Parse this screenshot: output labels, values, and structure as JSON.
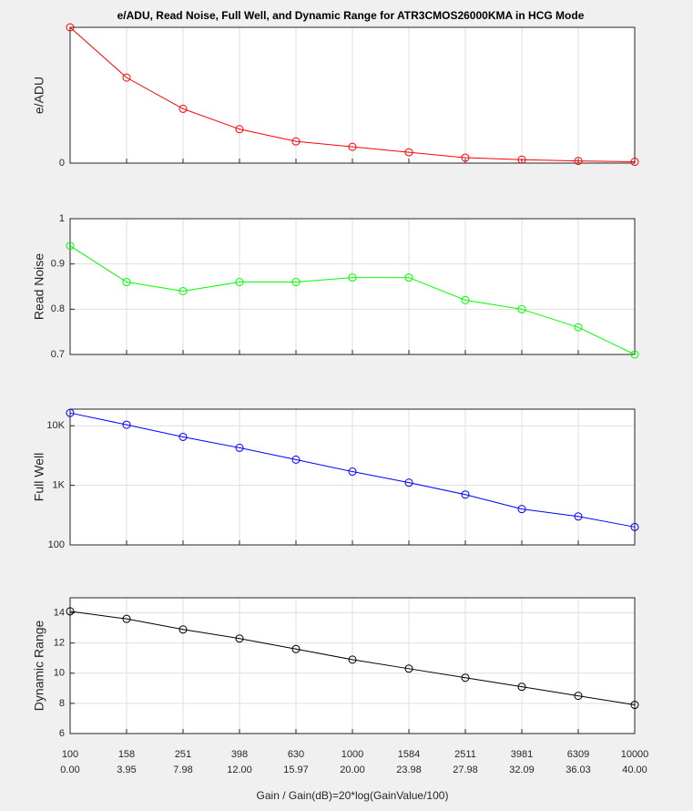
{
  "chart_data": [
    {
      "type": "line",
      "title": "e/ADU, Read Noise, Full Well, and Dynamic Range for ATR3CMOS26000KMA in HCG Mode",
      "ylabel": "e/ADU",
      "ylim": [
        0,
        1
      ],
      "yticks": [
        0
      ],
      "grid": true,
      "series": [
        {
          "color": "#ff0000",
          "values": [
            1,
            0.63,
            0.4,
            0.25,
            0.16,
            0.12,
            0.08,
            0.04,
            0.025,
            0.016,
            0.01
          ]
        }
      ]
    },
    {
      "type": "line",
      "ylabel": "Read Noise",
      "ylim": [
        0.7,
        1
      ],
      "yticks": [
        0.7,
        0.8,
        0.9,
        1
      ],
      "grid": true,
      "series": [
        {
          "color": "#00ff00",
          "values": [
            0.94,
            0.86,
            0.84,
            0.86,
            0.86,
            0.87,
            0.87,
            0.82,
            0.8,
            0.76,
            0.7
          ]
        }
      ]
    },
    {
      "type": "line",
      "ylabel": "Full Well",
      "log_y": true,
      "ylim": [
        100,
        19000
      ],
      "yticks": [
        100,
        {
          "value": 1000,
          "label": "1K"
        },
        {
          "value": 10000,
          "label": "10K"
        }
      ],
      "grid": true,
      "series": [
        {
          "color": "#0000ff",
          "values": [
            16400,
            10400,
            6500,
            4270,
            2700,
            1700,
            1110,
            700,
            400,
            300,
            200
          ]
        }
      ]
    },
    {
      "type": "line",
      "ylabel": "Dynamic Range",
      "ylim": [
        6,
        15
      ],
      "yticks": [
        6,
        8,
        10,
        12,
        14
      ],
      "grid": true,
      "xlabel": "Gain / Gain(dB)=20*log(GainValue/100)",
      "categories": [
        "100",
        "158",
        "251",
        "398",
        "630",
        "1000",
        "1584",
        "2511",
        "3981",
        "6309",
        "10000"
      ],
      "categories_db": [
        "0.00",
        "3.95",
        "7.98",
        "12.00",
        "15.97",
        "20.00",
        "23.98",
        "27.98",
        "32.09",
        "36.03",
        "40.00"
      ],
      "series": [
        {
          "color": "#000000",
          "values": [
            14.1,
            13.6,
            12.9,
            12.3,
            11.6,
            10.9,
            10.3,
            9.7,
            9.1,
            8.5,
            7.9
          ]
        }
      ]
    }
  ]
}
